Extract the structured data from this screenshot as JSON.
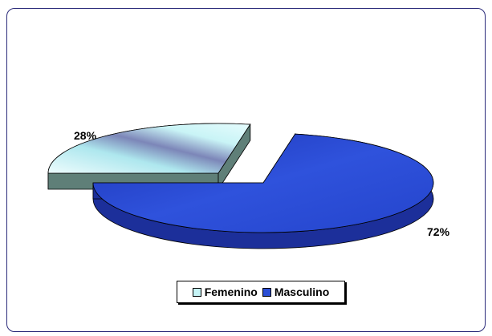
{
  "chart_data": {
    "type": "pie",
    "style": "3d-exploded",
    "categories": [
      "Femenino",
      "Masculino"
    ],
    "values": [
      28,
      72
    ],
    "data_labels": [
      "28%",
      "72%"
    ],
    "colors": {
      "Femenino": "#c6f4f6",
      "Masculino": "#2b4fd6"
    },
    "legend_position": "bottom"
  }
}
